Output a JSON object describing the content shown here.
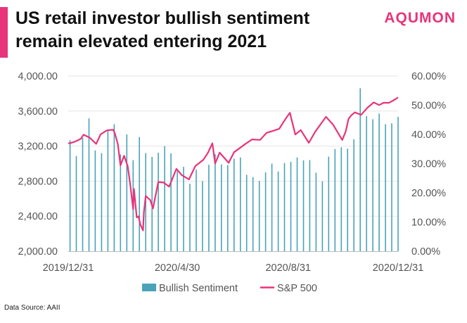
{
  "header": {
    "title_line1": "US retail investor bullish sentiment",
    "title_line2": "remain elevated entering 2021",
    "brand": "AQUMON"
  },
  "footer": {
    "source": "Data Source: AAII"
  },
  "colors": {
    "accent": "#e8347a",
    "bars": "#4aa3b8",
    "line": "#e8347a"
  },
  "chart_data": {
    "type": "bar+line",
    "title": "US retail investor bullish sentiment remain elevated entering 2021",
    "x_ticks": [
      "2019/12/31",
      "2020/4/30",
      "2020/8/31",
      "2020/12/31"
    ],
    "x_range": [
      "2019/12/31",
      "2020/12/31"
    ],
    "y_left": {
      "ticks": [
        "2,000.00",
        "2,400.00",
        "2,800.00",
        "3,200.00",
        "3,600.00",
        "4,000.00"
      ],
      "range": [
        2000,
        4000
      ]
    },
    "y_right": {
      "ticks": [
        "0.00%",
        "10.00%",
        "20.00%",
        "30.00%",
        "40.00%",
        "50.00%",
        "60.00%"
      ],
      "range": [
        0,
        60
      ]
    },
    "legend": {
      "position": "bottom",
      "entries": [
        "Bullish Sentiment",
        "S&P 500"
      ]
    },
    "bar_series": {
      "name": "Bullish Sentiment",
      "axis": "right",
      "x": [
        "2020-01-02",
        "2020-01-09",
        "2020-01-16",
        "2020-01-23",
        "2020-01-30",
        "2020-02-06",
        "2020-02-13",
        "2020-02-20",
        "2020-02-27",
        "2020-03-05",
        "2020-03-12",
        "2020-03-19",
        "2020-03-26",
        "2020-04-02",
        "2020-04-09",
        "2020-04-16",
        "2020-04-23",
        "2020-04-30",
        "2020-05-07",
        "2020-05-14",
        "2020-05-21",
        "2020-05-28",
        "2020-06-04",
        "2020-06-11",
        "2020-06-18",
        "2020-06-25",
        "2020-07-02",
        "2020-07-09",
        "2020-07-16",
        "2020-07-23",
        "2020-07-30",
        "2020-08-06",
        "2020-08-13",
        "2020-08-20",
        "2020-08-27",
        "2020-09-03",
        "2020-09-10",
        "2020-09-17",
        "2020-09-24",
        "2020-10-01",
        "2020-10-08",
        "2020-10-15",
        "2020-10-22",
        "2020-10-29",
        "2020-11-05",
        "2020-11-12",
        "2020-11-19",
        "2020-11-26",
        "2020-12-03",
        "2020-12-10",
        "2020-12-17",
        "2020-12-24",
        "2020-12-31"
      ],
      "values": [
        38.0,
        32.6,
        38.8,
        45.5,
        34.5,
        33.6,
        41.4,
        43.5,
        33.1,
        40.0,
        31.2,
        39.1,
        33.6,
        32.3,
        33.7,
        36.0,
        33.5,
        27.4,
        28.9,
        23.1,
        27.9,
        24.0,
        29.6,
        33.2,
        29.7,
        29.5,
        31.7,
        32.1,
        26.2,
        25.4,
        24.1,
        27.0,
        30.0,
        27.3,
        30.2,
        30.6,
        32.1,
        31.1,
        31.2,
        26.9,
        23.9,
        32.4,
        35.0,
        35.6,
        35.1,
        38.3,
        55.8,
        46.3,
        45.2,
        47.1,
        43.5,
        43.8,
        46.0
      ]
    },
    "line_series": {
      "name": "S&P 500",
      "axis": "left",
      "x": [
        "2019-12-31",
        "2020-01-03",
        "2020-01-08",
        "2020-01-14",
        "2020-01-17",
        "2020-01-24",
        "2020-01-31",
        "2020-02-05",
        "2020-02-12",
        "2020-02-19",
        "2020-02-21",
        "2020-02-24",
        "2020-02-27",
        "2020-03-02",
        "2020-03-06",
        "2020-03-09",
        "2020-03-12",
        "2020-03-13",
        "2020-03-16",
        "2020-03-18",
        "2020-03-20",
        "2020-03-23",
        "2020-03-24",
        "2020-03-26",
        "2020-03-31",
        "2020-04-03",
        "2020-04-09",
        "2020-04-15",
        "2020-04-21",
        "2020-04-29",
        "2020-05-05",
        "2020-05-13",
        "2020-05-20",
        "2020-05-29",
        "2020-06-03",
        "2020-06-08",
        "2020-06-11",
        "2020-06-16",
        "2020-06-26",
        "2020-07-02",
        "2020-07-15",
        "2020-07-22",
        "2020-07-31",
        "2020-08-07",
        "2020-08-14",
        "2020-08-21",
        "2020-08-28",
        "2020-09-02",
        "2020-09-08",
        "2020-09-14",
        "2020-09-23",
        "2020-09-30",
        "2020-10-12",
        "2020-10-20",
        "2020-10-30",
        "2020-11-03",
        "2020-11-06",
        "2020-11-09",
        "2020-11-13",
        "2020-11-20",
        "2020-11-27",
        "2020-12-04",
        "2020-12-10",
        "2020-12-15",
        "2020-12-21",
        "2020-12-28",
        "2020-12-31"
      ],
      "values": [
        3231,
        3235,
        3253,
        3283,
        3330,
        3295,
        3225,
        3335,
        3380,
        3386,
        3338,
        3225,
        2979,
        3090,
        2972,
        2747,
        2481,
        2711,
        2386,
        2398,
        2305,
        2237,
        2447,
        2630,
        2585,
        2489,
        2790,
        2783,
        2737,
        2940,
        2868,
        2820,
        2972,
        3044,
        3123,
        3232,
        3002,
        3125,
        3009,
        3130,
        3227,
        3276,
        3271,
        3351,
        3373,
        3397,
        3508,
        3580,
        3332,
        3383,
        3237,
        3363,
        3534,
        3443,
        3270,
        3370,
        3509,
        3550,
        3585,
        3557,
        3638,
        3699,
        3668,
        3695,
        3694,
        3735,
        3756
      ]
    }
  }
}
